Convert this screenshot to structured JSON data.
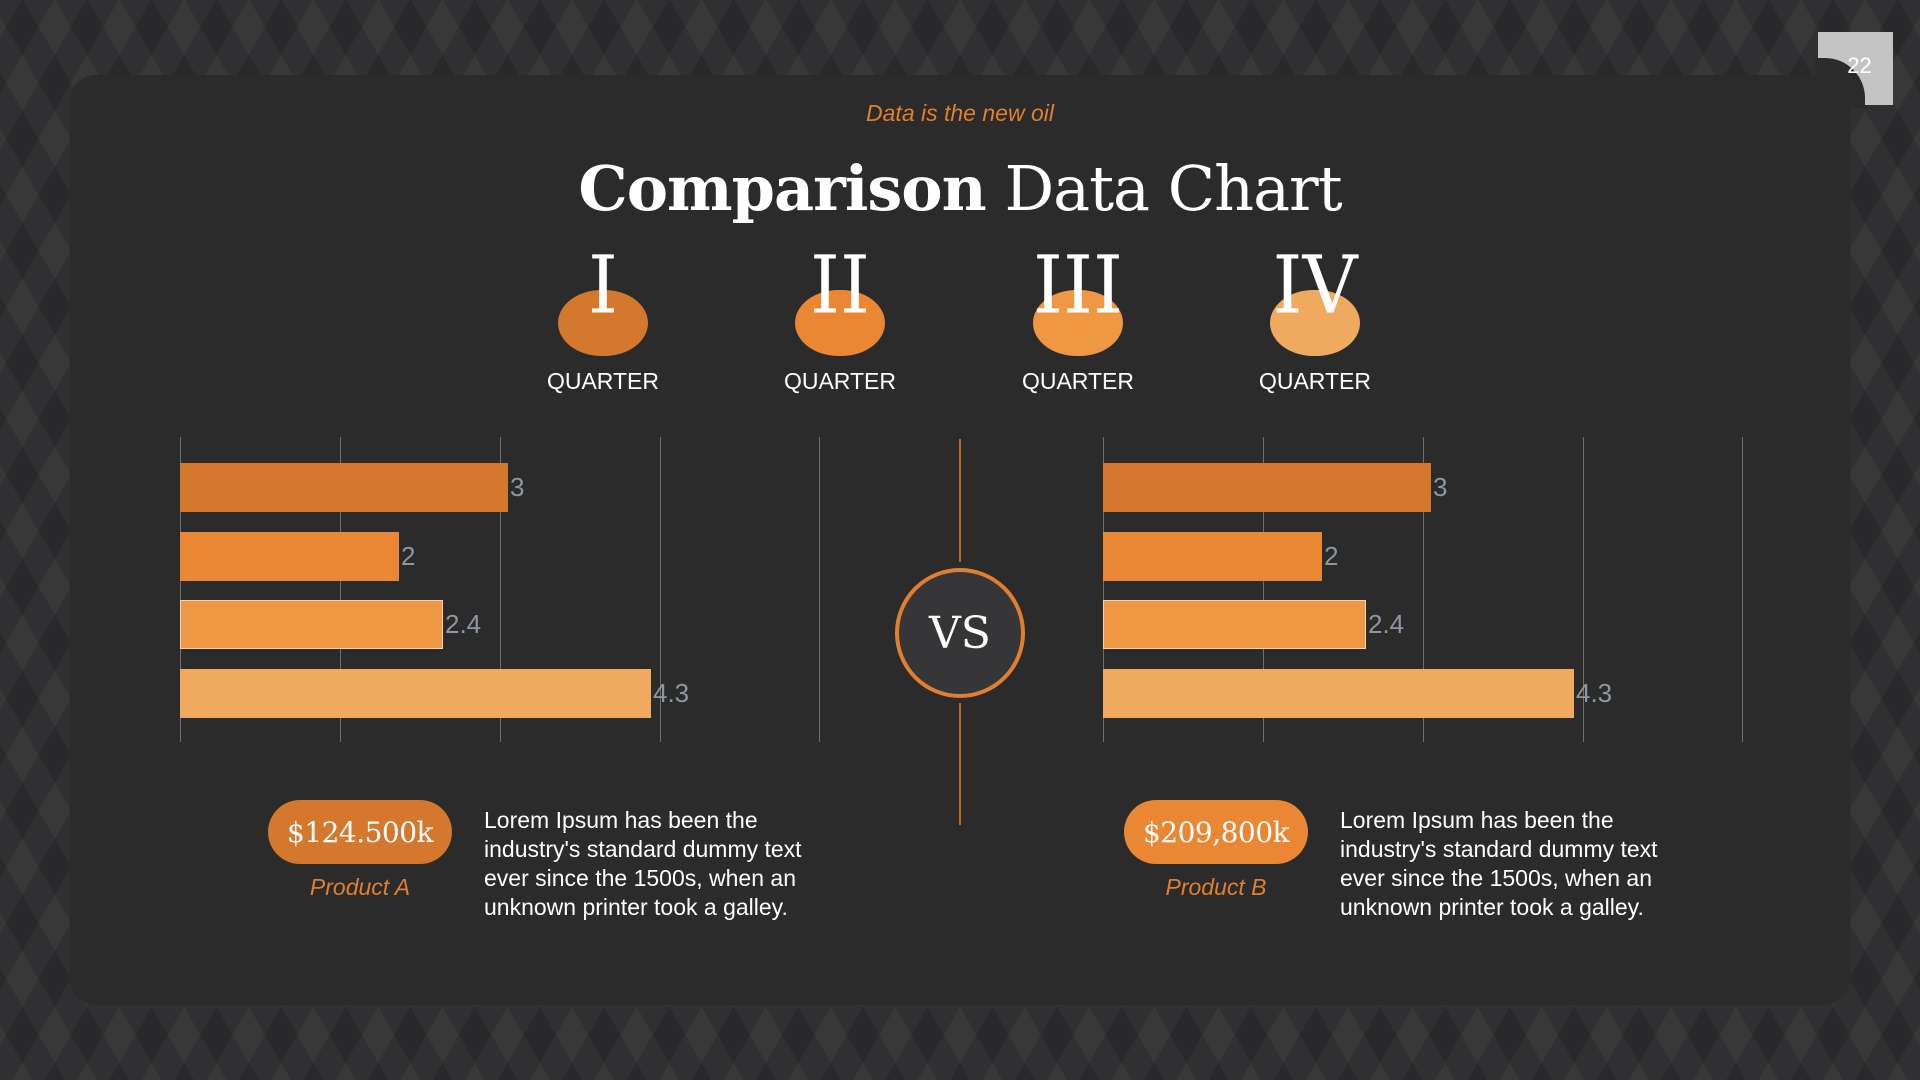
{
  "page": {
    "number": "22",
    "subtitle": "Data is the new oil",
    "title_bold": "Comparison",
    "title_light": "Data Chart"
  },
  "colors": {
    "background": "#2a2a2c",
    "card": "#2b2b2b",
    "accent": "#e07f30",
    "q1": "#d4782e",
    "q2": "#ea8734",
    "q3": "#ef9843",
    "q4": "#f0aa60",
    "value_label": "#8e96a0",
    "page_badge": "#c4c4c4"
  },
  "quarters": [
    {
      "numeral": "I",
      "label": "QUARTER"
    },
    {
      "numeral": "II",
      "label": "QUARTER"
    },
    {
      "numeral": "III",
      "label": "QUARTER"
    },
    {
      "numeral": "IV",
      "label": "QUARTER"
    }
  ],
  "vs_label": "VS",
  "products": [
    {
      "price": "$124.500k",
      "name": "Product A",
      "description": "Lorem Ipsum has been the industry's standard dummy text ever since the 1500s, when an unknown printer took a galley."
    },
    {
      "price": "$209,800k",
      "name": "Product B",
      "description": "Lorem Ipsum has been the industry's standard dummy text ever since the 1500s, when an unknown printer took a galley."
    }
  ],
  "chart_data": [
    {
      "type": "bar",
      "orientation": "horizontal",
      "title": "Product A",
      "categories": [
        "Quarter I",
        "Quarter II",
        "Quarter III",
        "Quarter IV"
      ],
      "values": [
        3,
        2,
        2.4,
        4.3
      ],
      "value_labels": [
        "3",
        "2",
        "2.4",
        "4.3"
      ],
      "xlim": [
        0,
        5
      ],
      "gridlines": [
        0,
        1.25,
        2.5,
        3.75,
        5
      ],
      "grid": true,
      "legend": "none",
      "xlabel": "",
      "ylabel": ""
    },
    {
      "type": "bar",
      "orientation": "horizontal",
      "title": "Product B",
      "categories": [
        "Quarter I",
        "Quarter II",
        "Quarter III",
        "Quarter IV"
      ],
      "values": [
        3,
        2,
        2.4,
        4.3
      ],
      "value_labels": [
        "3",
        "2",
        "2.4",
        "4.3"
      ],
      "xlim": [
        0,
        5
      ],
      "gridlines": [
        0,
        1.25,
        2.5,
        3.75,
        5
      ],
      "grid": true,
      "legend": "none",
      "xlabel": "",
      "ylabel": ""
    }
  ]
}
